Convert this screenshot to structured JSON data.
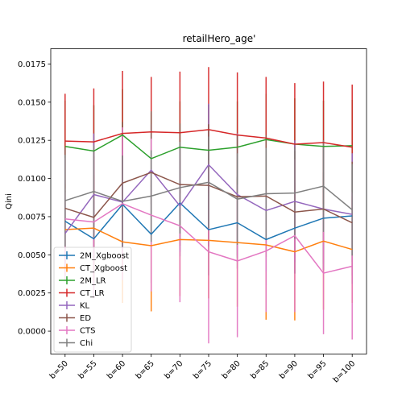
{
  "chart_data": {
    "type": "line",
    "title": "retailHero_age'",
    "xlabel": "",
    "ylabel": "Qini",
    "categories": [
      "b=50",
      "b=55",
      "b=60",
      "b=65",
      "b=70",
      "b=75",
      "b=80",
      "b=85",
      "b=90",
      "b=95",
      "b=100"
    ],
    "ylim": [
      -0.0015,
      0.0185
    ],
    "yticks": [
      0.0,
      0.0025,
      0.005,
      0.0075,
      0.01,
      0.0125,
      0.015,
      0.0175
    ],
    "ytick_labels": [
      "0.0000",
      "0.0025",
      "0.0050",
      "0.0075",
      "0.0100",
      "0.0125",
      "0.0150",
      "0.0175"
    ],
    "grid": false,
    "legend_position": "lower-left",
    "error_bars": true,
    "series": [
      {
        "name": "2M_Xgboost",
        "color": "#1f77b4",
        "values": [
          0.0072,
          0.00605,
          0.0083,
          0.00635,
          0.0084,
          0.00665,
          0.0071,
          0.006,
          0.00675,
          0.0074,
          0.00755
        ],
        "errors": [
          0.002,
          0.0025,
          0.003,
          0.0032,
          0.0035,
          0.003,
          0.003,
          0.003,
          0.003,
          0.003,
          0.003
        ]
      },
      {
        "name": "CT_Xgboost",
        "color": "#ff7f0e",
        "values": [
          0.00665,
          0.00675,
          0.00585,
          0.0056,
          0.006,
          0.00595,
          0.0058,
          0.00565,
          0.0052,
          0.0059,
          0.00535
        ],
        "errors": [
          0.003,
          0.0035,
          0.004,
          0.0043,
          0.0037,
          0.0038,
          0.0042,
          0.0049,
          0.0045,
          0.0045,
          0.0035
        ]
      },
      {
        "name": "2M_LR",
        "color": "#2ca02c",
        "values": [
          0.0121,
          0.0118,
          0.01285,
          0.0113,
          0.01205,
          0.01185,
          0.01205,
          0.01255,
          0.01225,
          0.0121,
          0.01215
        ],
        "errors": [
          0.003,
          0.003,
          0.003,
          0.003,
          0.003,
          0.003,
          0.003,
          0.003,
          0.003,
          0.003,
          0.003
        ]
      },
      {
        "name": "CT_LR",
        "color": "#d62728",
        "values": [
          0.01245,
          0.0124,
          0.01295,
          0.01305,
          0.013,
          0.0132,
          0.01285,
          0.01265,
          0.01225,
          0.01235,
          0.01205
        ],
        "errors": [
          0.0031,
          0.0035,
          0.0041,
          0.0036,
          0.004,
          0.0041,
          0.0041,
          0.004,
          0.004,
          0.004,
          0.0041
        ]
      },
      {
        "name": "KL",
        "color": "#9467bd",
        "values": [
          0.0064,
          0.00895,
          0.00845,
          0.01055,
          0.0082,
          0.0109,
          0.00895,
          0.0079,
          0.0085,
          0.008,
          0.00765
        ],
        "errors": [
          0.002,
          0.004,
          0.0035,
          0.003,
          0.003,
          0.004,
          0.004,
          0.004,
          0.004,
          0.004,
          0.004
        ]
      },
      {
        "name": "ED",
        "color": "#8c564b",
        "values": [
          0.00805,
          0.00745,
          0.0097,
          0.0104,
          0.0096,
          0.00955,
          0.0088,
          0.00885,
          0.0078,
          0.008,
          0.0071
        ],
        "errors": [
          0.004,
          0.004,
          0.004,
          0.004,
          0.004,
          0.004,
          0.004,
          0.004,
          0.004,
          0.004,
          0.004
        ]
      },
      {
        "name": "CTS",
        "color": "#e377c2",
        "values": [
          0.00735,
          0.00715,
          0.00835,
          0.0076,
          0.0069,
          0.0052,
          0.0046,
          0.00525,
          0.00625,
          0.0038,
          0.00425
        ],
        "errors": [
          0.004,
          0.005,
          0.005,
          0.005,
          0.005,
          0.006,
          0.005,
          0.004,
          0.005,
          0.004,
          0.0048
        ]
      },
      {
        "name": "Chi",
        "color": "#7f7f7f",
        "values": [
          0.00855,
          0.00915,
          0.0085,
          0.00885,
          0.0094,
          0.00975,
          0.00865,
          0.009,
          0.00905,
          0.0095,
          0.00795
        ],
        "errors": [
          0.003,
          0.003,
          0.003,
          0.003,
          0.003,
          0.003,
          0.003,
          0.003,
          0.003,
          0.003,
          0.003
        ]
      }
    ]
  }
}
